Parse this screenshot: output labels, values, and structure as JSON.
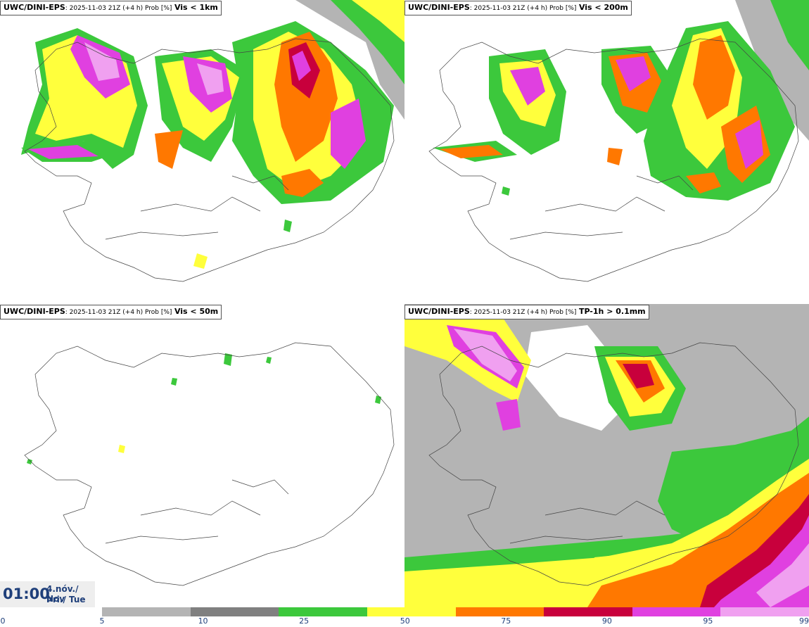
{
  "panels": [
    {
      "model": "UWC/DINI-EPS",
      "run": ": 2025-11-03 21Z (+4 h) Prob [%]",
      "param": "Vis < 1km"
    },
    {
      "model": "UWC/DINI-EPS",
      "run": ": 2025-11-03 21Z (+4 h) Prob [%]",
      "param": "Vis < 200m"
    },
    {
      "model": "UWC/DINI-EPS",
      "run": ": 2025-11-03 21Z (+4 h) Prob [%]",
      "param": "Vis < 50m"
    },
    {
      "model": "UWC/DINI-EPS",
      "run": ": 2025-11-03 21Z (+4 h) Prob [%]",
      "param": "TP-1h > 0.1mm"
    }
  ],
  "valid_time": {
    "time": "01:00",
    "date_line1": "4.nóv./ Nov",
    "date_line2": "Þri./ Tue"
  },
  "legend": {
    "ticks": [
      "0",
      "5",
      "10",
      "25",
      "50",
      "75",
      "90",
      "95",
      "99"
    ],
    "colors": [
      "#b4b4b4",
      "#808080",
      "#3cc83c",
      "#ffff3c",
      "#ff7800",
      "#c8003c",
      "#e040e0",
      "#f0a0f0"
    ]
  },
  "palette": {
    "p5": "#b4b4b4",
    "p10": "#808080",
    "p25": "#3cc83c",
    "p50": "#ffff3c",
    "p75": "#ff7800",
    "p90": "#c8003c",
    "p95": "#e040e0",
    "p99": "#f0a0f0"
  }
}
